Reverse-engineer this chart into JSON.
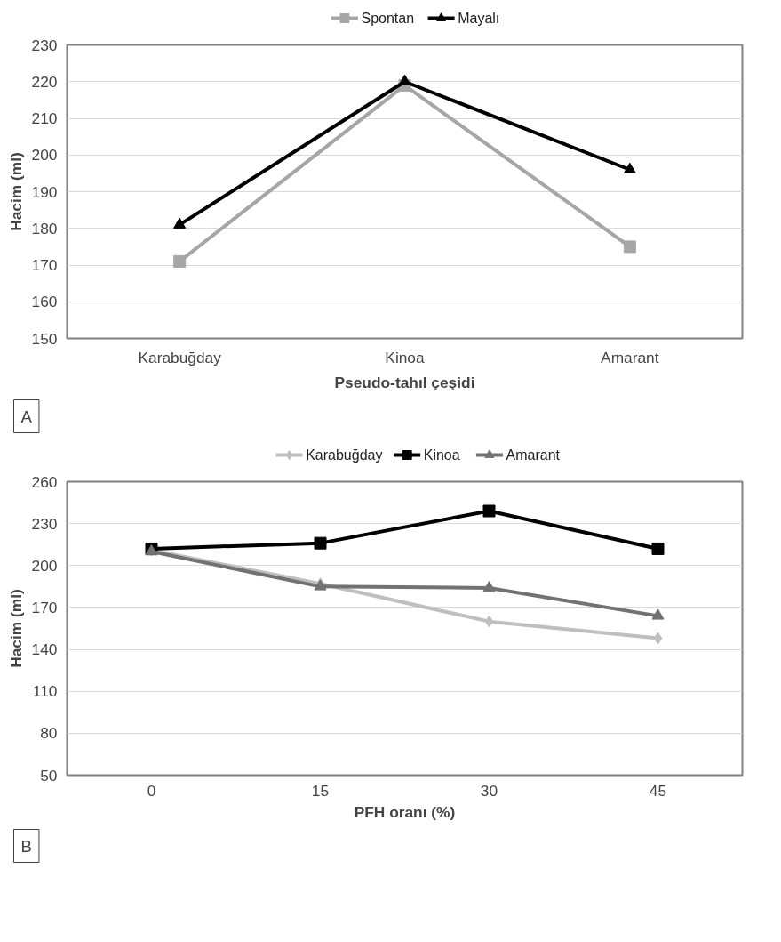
{
  "chart_data": [
    {
      "type": "line",
      "xlabel": "Pseudo-tahıl çeşidi",
      "ylabel": "Hacim (ml)",
      "categories": [
        "Karabuğday",
        "Kinoa",
        "Amarant"
      ],
      "series": [
        {
          "name": "Spontan",
          "color": "#a6a6a6",
          "marker": "square",
          "values": [
            171,
            219,
            175
          ]
        },
        {
          "name": "Mayalı",
          "color": "#000000",
          "marker": "triangle",
          "values": [
            181,
            220,
            196
          ]
        }
      ],
      "ylim": [
        150,
        230
      ],
      "yticks": [
        150,
        160,
        170,
        180,
        190,
        200,
        210,
        220,
        230
      ],
      "grid": "y",
      "legend": "top",
      "annotations": [
        "A"
      ]
    },
    {
      "type": "line",
      "xlabel": "PFH oranı (%)",
      "ylabel": "Hacim (ml)",
      "categories": [
        "0",
        "15",
        "30",
        "45"
      ],
      "series": [
        {
          "name": "Karabuğday",
          "color": "#bfbfbf",
          "marker": "diamond",
          "values": [
            211,
            187,
            160,
            148
          ]
        },
        {
          "name": "Kinoa",
          "color": "#000000",
          "marker": "square",
          "values": [
            212,
            216,
            239,
            212
          ]
        },
        {
          "name": "Amarant",
          "color": "#767171",
          "marker": "triangle",
          "values": [
            210,
            185,
            184,
            164
          ]
        }
      ],
      "ylim": [
        50,
        260
      ],
      "yticks": [
        50,
        80,
        110,
        140,
        170,
        200,
        230,
        260
      ],
      "grid": "y",
      "legend": "top",
      "annotations": [
        "B"
      ]
    }
  ]
}
